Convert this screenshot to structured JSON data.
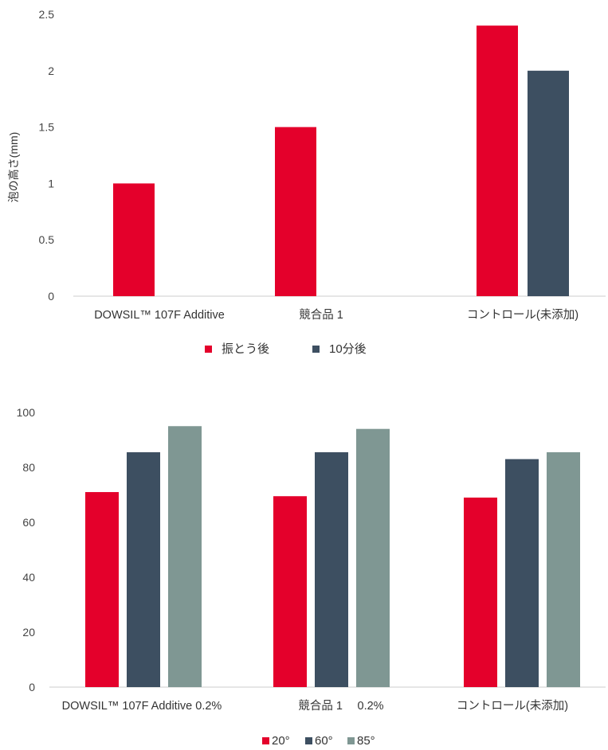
{
  "chart_data": [
    {
      "type": "bar",
      "title": "",
      "xlabel": "",
      "ylabel": "泡の高さ(mm)",
      "ylim": [
        0,
        2.5
      ],
      "yticks": [
        "0",
        "0.5",
        "1",
        "1.5",
        "2",
        "2.5"
      ],
      "grid": false,
      "legend_position": "bottom",
      "categories": [
        "DOWSIL™ 107F Additive",
        "競合品 1",
        "コントロール(未添加)"
      ],
      "series": [
        {
          "name": "振とう後",
          "color": "#E4002B",
          "values": [
            1.0,
            1.5,
            2.4
          ]
        },
        {
          "name": "10分後",
          "color": "#3D4F61",
          "values": [
            0,
            0,
            2.0
          ]
        }
      ]
    },
    {
      "type": "bar",
      "title": "",
      "xlabel": "",
      "ylabel": "",
      "ylim": [
        0,
        100
      ],
      "yticks": [
        "0",
        "20",
        "40",
        "60",
        "80",
        "100"
      ],
      "grid": false,
      "legend_position": "bottom",
      "categories": [
        "DOWSIL™ 107F Additive 0.2%",
        "競合品 1　 0.2%",
        "コントロール(未添加)"
      ],
      "series": [
        {
          "name": "20°",
          "color": "#E4002B",
          "values": [
            71,
            69.5,
            69
          ]
        },
        {
          "name": "60°",
          "color": "#3D4F61",
          "values": [
            85.5,
            85.5,
            83
          ]
        },
        {
          "name": "85°",
          "color": "#7F9793",
          "values": [
            95,
            94,
            85.5
          ]
        }
      ]
    }
  ]
}
